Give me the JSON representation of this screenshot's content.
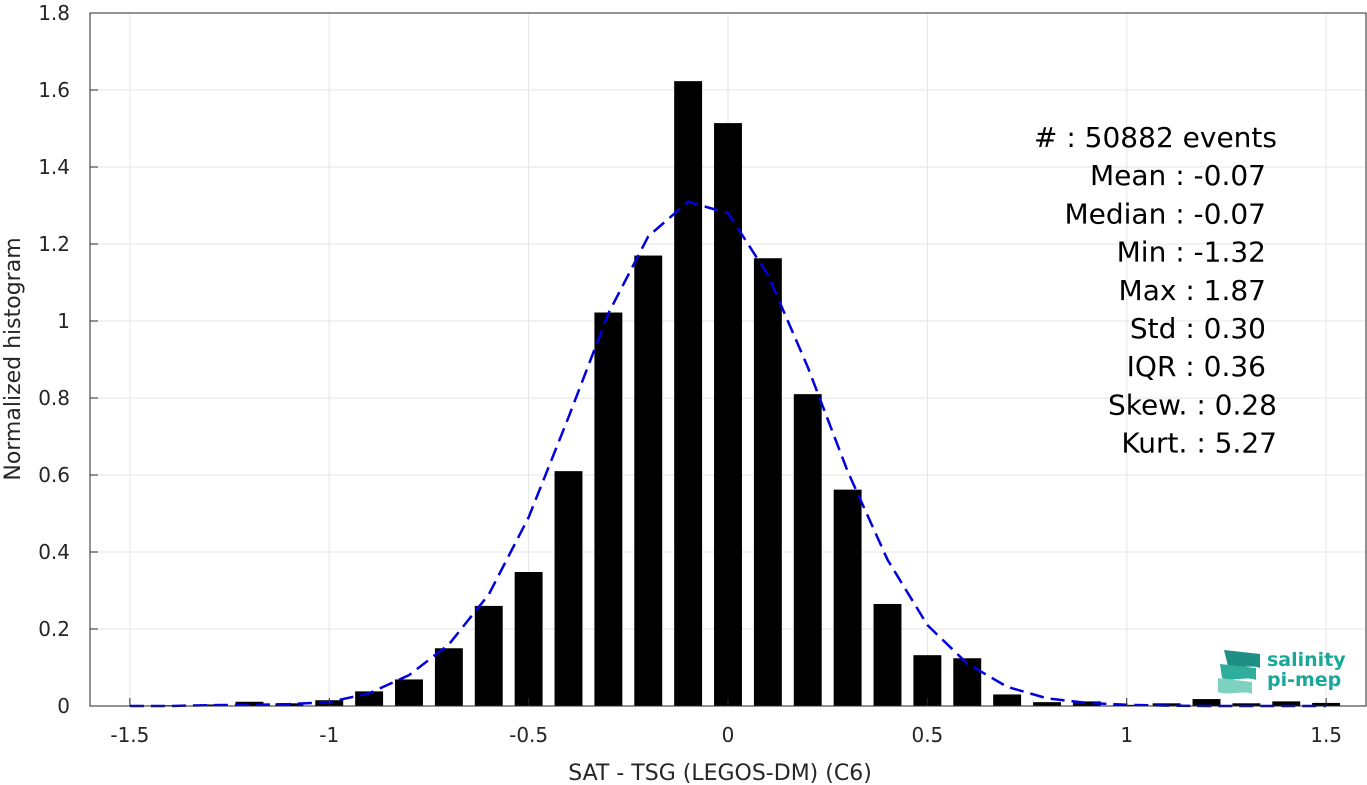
{
  "chart_data": {
    "type": "bar",
    "xlabel": "SAT - TSG (LEGOS-DM) (C6)",
    "ylabel": "Normalized histogram",
    "xlim": [
      -1.6,
      1.6
    ],
    "ylim": [
      0,
      1.8
    ],
    "xticks": [
      -1.5,
      -1,
      -0.5,
      0,
      0.5,
      1,
      1.5
    ],
    "xtick_labels": [
      "-1.5",
      "-1",
      "-0.5",
      "0",
      "0.5",
      "1",
      "1.5"
    ],
    "yticks": [
      0,
      0.2,
      0.4,
      0.6,
      0.8,
      1,
      1.2,
      1.4,
      1.6,
      1.8
    ],
    "ytick_labels": [
      "0",
      "0.2",
      "0.4",
      "0.6",
      "0.8",
      "1",
      "1.2",
      "1.4",
      "1.6",
      "1.8"
    ],
    "grid": true,
    "bin_width": 0.1,
    "bars": {
      "x": [
        -1.5,
        -1.4,
        -1.3,
        -1.2,
        -1.1,
        -1.0,
        -0.9,
        -0.8,
        -0.7,
        -0.6,
        -0.5,
        -0.4,
        -0.3,
        -0.2,
        -0.1,
        0.0,
        0.1,
        0.2,
        0.3,
        0.4,
        0.5,
        0.6,
        0.7,
        0.8,
        0.9,
        1.0,
        1.1,
        1.2,
        1.3,
        1.4,
        1.5
      ],
      "values": [
        0.0,
        0.002,
        0.004,
        0.011,
        0.007,
        0.015,
        0.038,
        0.069,
        0.15,
        0.26,
        0.348,
        0.61,
        1.022,
        1.17,
        1.623,
        1.514,
        1.163,
        0.81,
        0.562,
        0.265,
        0.132,
        0.124,
        0.03,
        0.01,
        0.012,
        0.003,
        0.007,
        0.018,
        0.007,
        0.012,
        0.008
      ],
      "color": "#000000"
    },
    "fit_curve": {
      "style": "dashed",
      "color": "#0000dd",
      "x": [
        -1.5,
        -1.4,
        -1.3,
        -1.2,
        -1.1,
        -1.0,
        -0.9,
        -0.8,
        -0.7,
        -0.6,
        -0.5,
        -0.4,
        -0.3,
        -0.2,
        -0.1,
        0.0,
        0.1,
        0.2,
        0.3,
        0.4,
        0.5,
        0.6,
        0.7,
        0.8,
        0.9,
        1.0,
        1.1,
        1.2,
        1.3,
        1.4,
        1.5
      ],
      "y": [
        0.0,
        0.0,
        0.002,
        0.003,
        0.005,
        0.01,
        0.033,
        0.08,
        0.16,
        0.29,
        0.49,
        0.75,
        1.02,
        1.22,
        1.31,
        1.28,
        1.12,
        0.88,
        0.61,
        0.38,
        0.21,
        0.11,
        0.05,
        0.02,
        0.008,
        0.003,
        0.001,
        0.0,
        0.0,
        0.0,
        0.0
      ]
    },
    "stats_lines": [
      "#  : 50882 events",
      "Mean : -0.07",
      "Median : -0.07",
      "Min : -1.32",
      "Max : 1.87",
      "Std : 0.30",
      "IQR : 0.36",
      "Skew. : 0.28",
      "Kurt. : 5.27"
    ]
  },
  "logo": {
    "line1": "salinity",
    "line2": "pi-mep"
  }
}
